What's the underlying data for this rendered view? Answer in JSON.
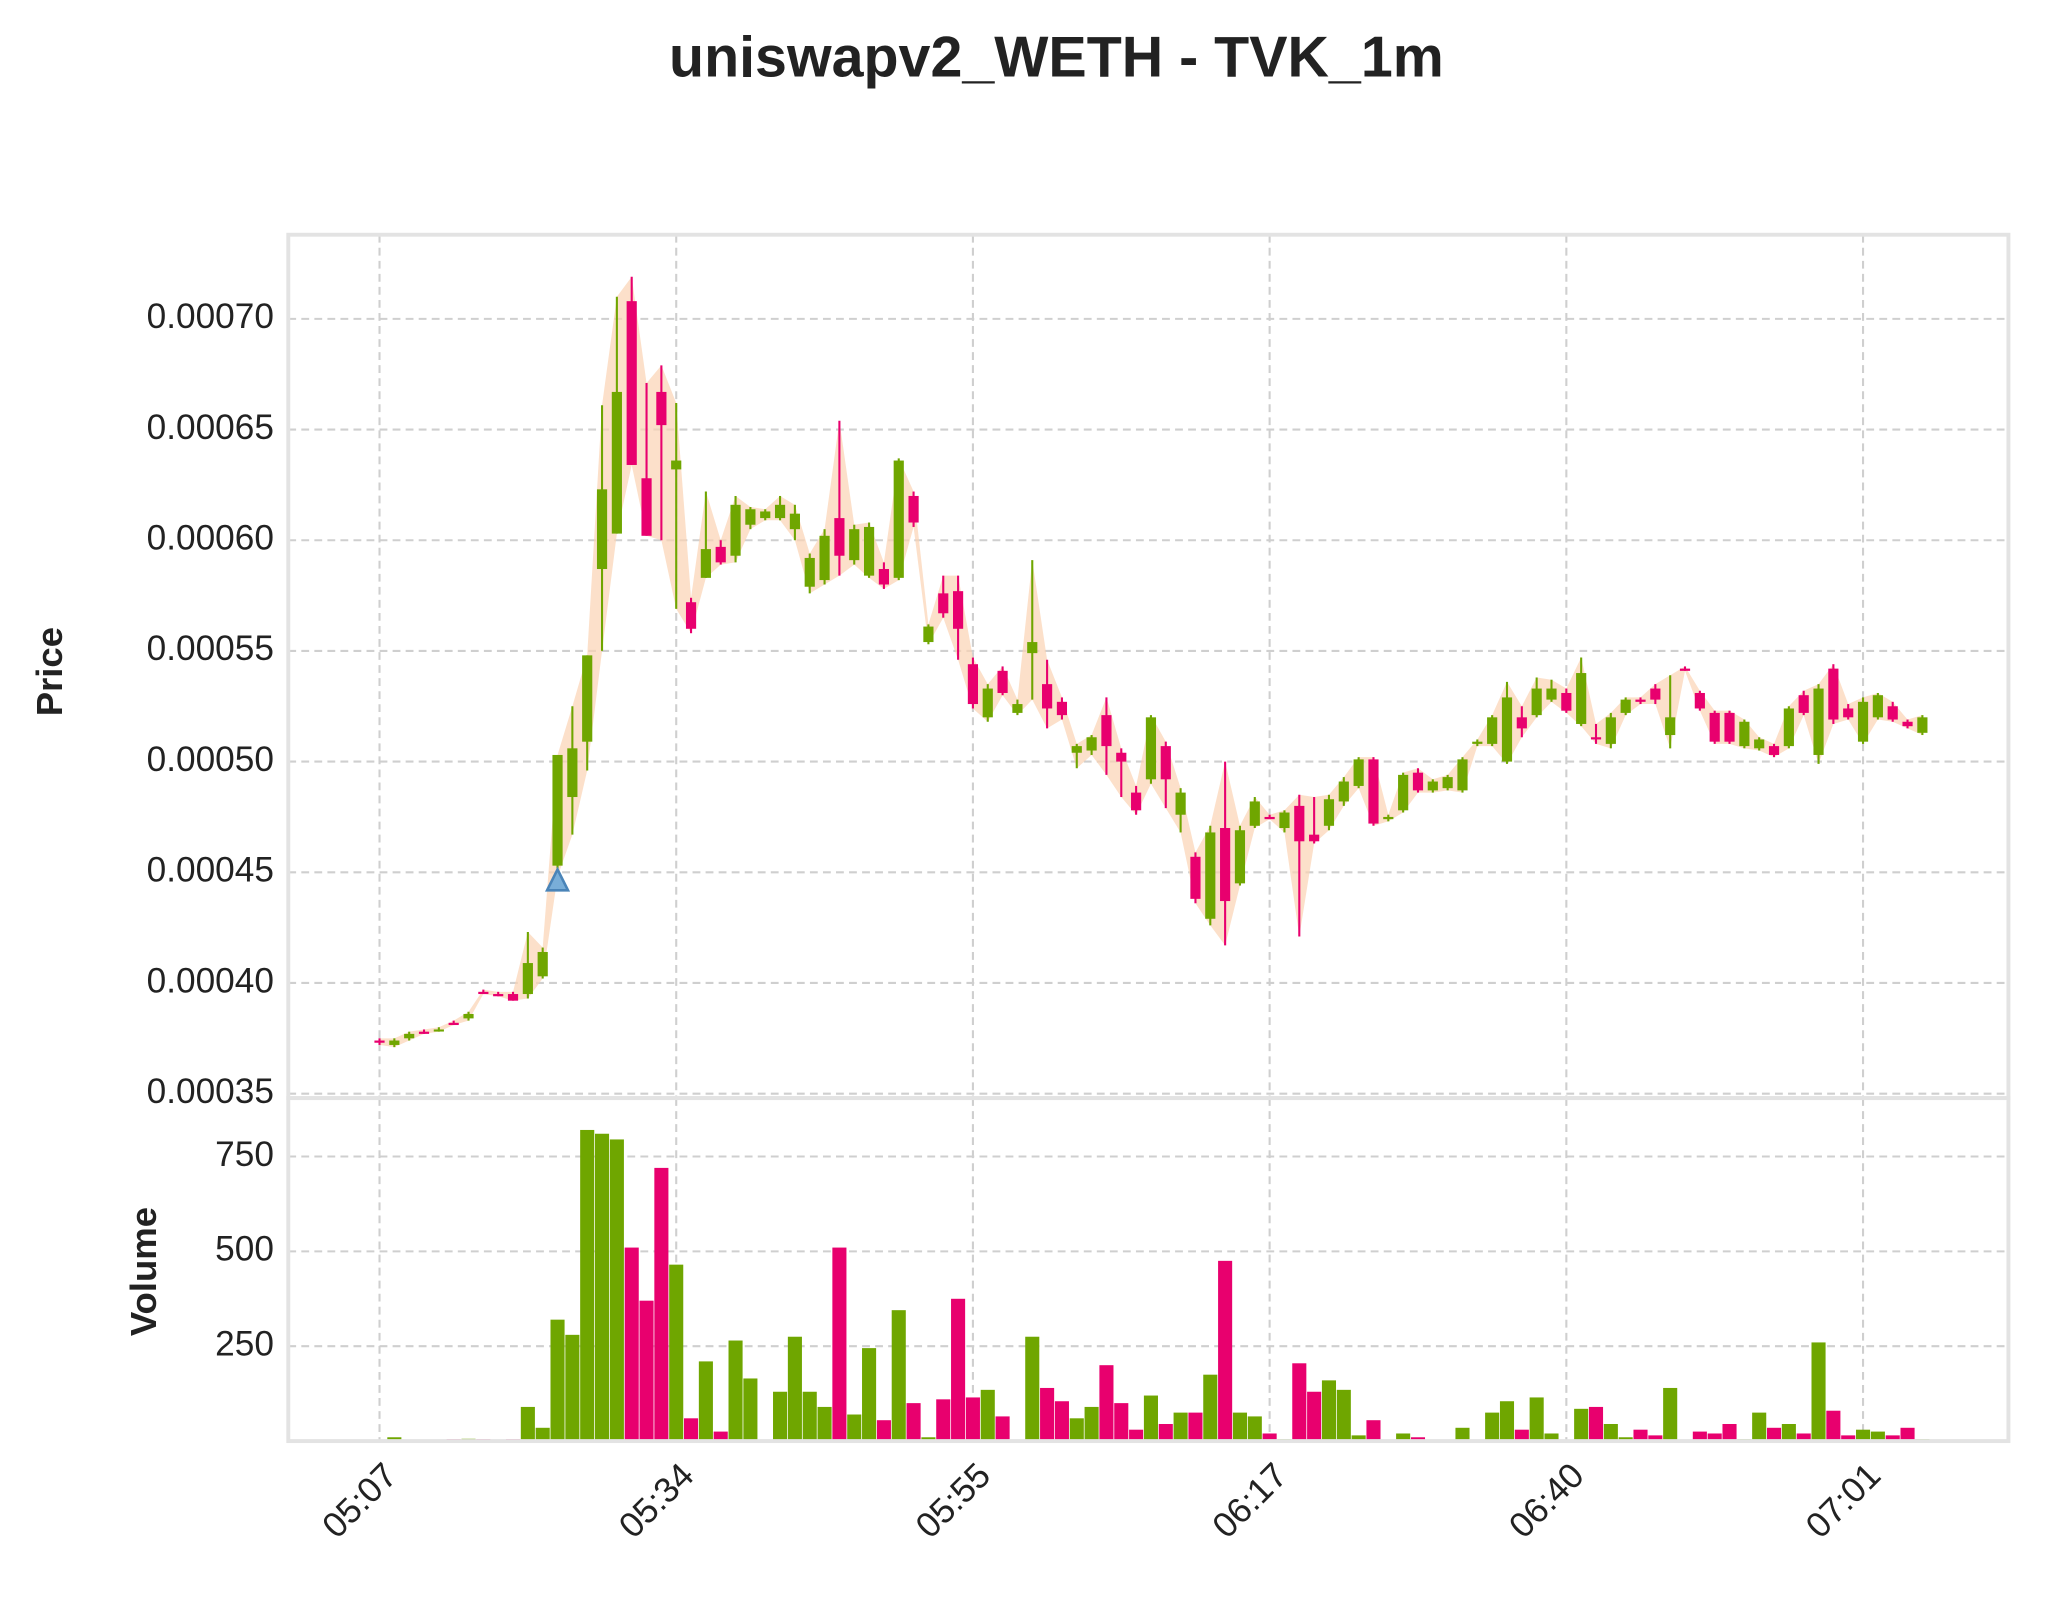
{
  "chart_data": {
    "type": "candlestick",
    "title": "uniswapv2_WETH - TVK_1m",
    "ylabel": "Price",
    "volume_label": "Volume",
    "up_color": "#6fa600",
    "down_color": "#e8006e",
    "band_color": "#fbd3b4",
    "grid": true,
    "xlim": [
      -6.15,
      109.8
    ],
    "xticks": [
      {
        "value": 0,
        "label": "05:07"
      },
      {
        "value": 20,
        "label": "05:34"
      },
      {
        "value": 40,
        "label": "05:55"
      },
      {
        "value": 60,
        "label": "06:17"
      },
      {
        "value": 80,
        "label": "06:40"
      },
      {
        "value": 100,
        "label": "07:01"
      }
    ],
    "ylim": [
      0.000348,
      0.000738
    ],
    "yticks": [
      0.00035,
      {
        "value": 0.0004,
        "label": "0.00040"
      },
      0.00045,
      {
        "value": 0.0005,
        "label": "0.00050"
      },
      0.00055,
      {
        "value": 0.0006,
        "label": "0.00060"
      },
      0.00065,
      {
        "value": 0.0007,
        "label": "0.00070"
      }
    ],
    "volume_ylim": [
      0,
      904
    ],
    "volume_yticks": [
      250,
      500,
      750
    ],
    "open": [
      0.000374,
      0.000372,
      0.000375,
      0.000378,
      0.000379,
      0.000382,
      0.000384,
      0.000396,
      0.000395,
      0.000395,
      0.000395,
      0.000403,
      0.000453,
      0.000484,
      0.000509,
      0.000587,
      0.000603,
      0.000708,
      0.000628,
      0.000667,
      0.000632,
      0.000572,
      0.000583,
      0.000597,
      0.000593,
      0.000607,
      0.00061,
      0.00061,
      0.000605,
      0.000579,
      0.000582,
      0.00061,
      0.000591,
      0.000584,
      0.000587,
      0.000583,
      0.00062,
      0.000554,
      0.000576,
      0.000577,
      0.000544,
      0.00052,
      0.000541,
      0.000522,
      0.000549,
      0.000535,
      0.000527,
      0.000504,
      0.000505,
      0.000521,
      0.000504,
      0.000486,
      0.000492,
      0.000507,
      0.000476,
      0.000457,
      0.000429,
      0.00047,
      0.000445,
      0.000471,
      0.000475,
      0.00047,
      0.00048,
      0.000467,
      0.000471,
      0.000482,
      0.000489,
      0.000501,
      0.000474,
      0.000478,
      0.000495,
      0.000487,
      0.000488,
      0.000487,
      0.000508,
      0.000508,
      0.0005,
      0.00052,
      0.000521,
      0.000528,
      0.000531,
      0.000517,
      0.000511,
      0.000508,
      0.000522,
      0.000528,
      0.000533,
      0.000512,
      0.000542,
      0.000531,
      0.000522,
      0.000522,
      0.000507,
      0.000506,
      0.000507,
      0.000507,
      0.00053,
      0.000503,
      0.000542,
      0.000524,
      0.000509,
      0.00052,
      0.000525,
      0.000518,
      0.000513
    ],
    "high": [
      0.000375,
      0.000375,
      0.000378,
      0.000379,
      0.00038,
      0.000383,
      0.000387,
      0.000397,
      0.000396,
      0.000396,
      0.000423,
      0.000416,
      0.000503,
      0.000525,
      0.000548,
      0.000661,
      0.00071,
      0.000719,
      0.000671,
      0.000679,
      0.000662,
      0.000574,
      0.000622,
      0.0006,
      0.00062,
      0.000615,
      0.000614,
      0.00062,
      0.000616,
      0.000594,
      0.000605,
      0.000654,
      0.000607,
      0.000608,
      0.00059,
      0.000637,
      0.000622,
      0.000562,
      0.000584,
      0.000584,
      0.000547,
      0.000535,
      0.000543,
      0.000528,
      0.000591,
      0.000546,
      0.000529,
      0.000508,
      0.000512,
      0.000529,
      0.000506,
      0.000489,
      0.000521,
      0.000509,
      0.000488,
      0.000459,
      0.000471,
      0.0005,
      0.000471,
      0.000484,
      0.000476,
      0.000478,
      0.000485,
      0.000484,
      0.000485,
      0.000493,
      0.000502,
      0.000502,
      0.000476,
      0.000495,
      0.000497,
      0.000492,
      0.000494,
      0.000502,
      0.00051,
      0.000521,
      0.000536,
      0.000525,
      0.000538,
      0.000537,
      0.000533,
      0.000547,
      0.000517,
      0.000522,
      0.000529,
      0.000529,
      0.000535,
      0.000539,
      0.000543,
      0.000532,
      0.000523,
      0.000523,
      0.000519,
      0.000511,
      0.000508,
      0.000525,
      0.000532,
      0.000535,
      0.000544,
      0.000526,
      0.000529,
      0.000531,
      0.000527,
      0.000519,
      0.000521
    ],
    "low": [
      0.000372,
      0.000371,
      0.000374,
      0.000377,
      0.000378,
      0.000381,
      0.000383,
      0.000395,
      0.000394,
      0.000392,
      0.000393,
      0.000402,
      0.000448,
      0.000467,
      0.000496,
      0.00055,
      0.000603,
      0.000634,
      0.000602,
      0.0006,
      0.000569,
      0.000558,
      0.000583,
      0.000589,
      0.00059,
      0.000605,
      0.000609,
      0.000609,
      0.0006,
      0.000576,
      0.00058,
      0.000584,
      0.000589,
      0.000583,
      0.000578,
      0.000582,
      0.000606,
      0.000553,
      0.000565,
      0.000546,
      0.000524,
      0.000518,
      0.00053,
      0.000521,
      0.000528,
      0.000515,
      0.000519,
      0.000497,
      0.000503,
      0.000494,
      0.000484,
      0.000476,
      0.00049,
      0.000479,
      0.000468,
      0.000436,
      0.000426,
      0.000417,
      0.000444,
      0.00047,
      0.000474,
      0.000468,
      0.000421,
      0.000463,
      0.000469,
      0.00048,
      0.000488,
      0.000471,
      0.000473,
      0.000477,
      0.000486,
      0.000486,
      0.000487,
      0.000486,
      0.000507,
      0.000507,
      0.000499,
      0.000511,
      0.00052,
      0.000527,
      0.000522,
      0.000516,
      0.000508,
      0.000506,
      0.000521,
      0.000526,
      0.000526,
      0.000506,
      0.000541,
      0.000523,
      0.000508,
      0.000508,
      0.000506,
      0.000505,
      0.000502,
      0.000506,
      0.000521,
      0.000499,
      0.000517,
      0.000519,
      0.000508,
      0.000519,
      0.000518,
      0.000515,
      0.000512
    ],
    "close": [
      0.000373,
      0.000374,
      0.000377,
      0.000377,
      0.000379,
      0.000381,
      0.000386,
      0.000395,
      0.000394,
      0.000392,
      0.000409,
      0.000414,
      0.000503,
      0.000506,
      0.000548,
      0.000623,
      0.000667,
      0.000634,
      0.000602,
      0.000652,
      0.000636,
      0.00056,
      0.000596,
      0.00059,
      0.000616,
      0.000614,
      0.000613,
      0.000616,
      0.000612,
      0.000592,
      0.000602,
      0.000593,
      0.000605,
      0.000606,
      0.00058,
      0.000636,
      0.000608,
      0.000561,
      0.000567,
      0.00056,
      0.000526,
      0.000533,
      0.000531,
      0.000526,
      0.000554,
      0.000524,
      0.000521,
      0.000507,
      0.000511,
      0.000507,
      0.0005,
      0.000478,
      0.00052,
      0.000492,
      0.000486,
      0.000438,
      0.000468,
      0.000437,
      0.000469,
      0.000482,
      0.000474,
      0.000477,
      0.000464,
      0.000464,
      0.000483,
      0.000491,
      0.000501,
      0.000472,
      0.000475,
      0.000494,
      0.000487,
      0.000491,
      0.000493,
      0.000501,
      0.000509,
      0.00052,
      0.000529,
      0.000515,
      0.000533,
      0.000533,
      0.000523,
      0.00054,
      0.00051,
      0.00052,
      0.000528,
      0.000527,
      0.000528,
      0.00052,
      0.000541,
      0.000524,
      0.000509,
      0.000509,
      0.000518,
      0.00051,
      0.000503,
      0.000524,
      0.000522,
      0.000533,
      0.000519,
      0.00052,
      0.000527,
      0.00053,
      0.000519,
      0.000516,
      0.00052
    ],
    "volume": [
      3,
      10,
      2,
      2,
      2,
      5,
      6,
      5,
      3,
      5,
      90,
      35,
      320,
      280,
      820,
      810,
      795,
      510,
      370,
      720,
      465,
      60,
      210,
      25,
      265,
      165,
      0,
      130,
      275,
      130,
      90,
      510,
      70,
      245,
      55,
      345,
      100,
      10,
      110,
      375,
      115,
      135,
      65,
      0,
      275,
      140,
      105,
      60,
      90,
      200,
      100,
      30,
      120,
      45,
      75,
      75,
      175,
      475,
      75,
      65,
      20,
      5,
      205,
      130,
      160,
      135,
      15,
      55,
      3,
      20,
      10,
      3,
      3,
      35,
      3,
      75,
      105,
      30,
      115,
      20,
      3,
      85,
      90,
      45,
      10,
      30,
      15,
      140,
      3,
      25,
      20,
      45,
      5,
      75,
      35,
      45,
      20,
      260,
      80,
      15,
      30,
      25,
      15,
      35,
      5
    ],
    "signals": {
      "x": [
        12
      ],
      "values": [
        0.000446
      ],
      "color": "#79aed8"
    }
  }
}
